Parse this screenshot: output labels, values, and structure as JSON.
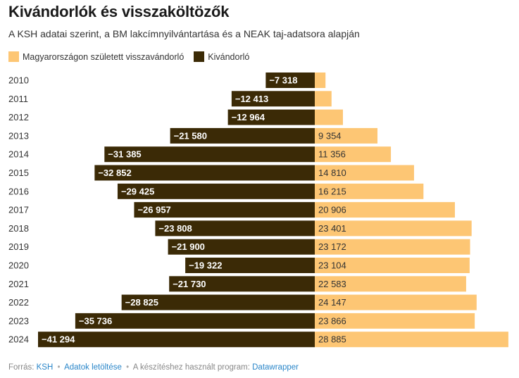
{
  "header": {
    "title": "Kivándorlók és visszaköltözők",
    "subtitle": "A KSH adatai szerint, a BM lakcímnyilvántartása és a NEAK taj-adatsora alapján"
  },
  "legend": {
    "returnee_label": "Magyarországon született visszavándorló",
    "emigrant_label": "Kivándorló"
  },
  "colors": {
    "returnee": "#fdc674",
    "emigrant": "#3b2a06",
    "label_on_dark": "#ffffff",
    "label_on_light": "#333333"
  },
  "chart_data": {
    "type": "bar",
    "orientation": "horizontal-diverging",
    "categories": [
      "2010",
      "2011",
      "2012",
      "2013",
      "2014",
      "2015",
      "2016",
      "2017",
      "2018",
      "2019",
      "2020",
      "2021",
      "2022",
      "2023",
      "2024"
    ],
    "series": [
      {
        "name": "Kivándorló",
        "values": [
          -7318,
          -12413,
          -12964,
          -21580,
          -31385,
          -32852,
          -29425,
          -26957,
          -23808,
          -21900,
          -19322,
          -21730,
          -28825,
          -35736,
          -41294
        ],
        "labels": [
          "−7 318",
          "−12 413",
          "−12 964",
          "−21 580",
          "−31 385",
          "−32 852",
          "−29 425",
          "−26 957",
          "−23 808",
          "−21 900",
          "−19 322",
          "−21 730",
          "−28 825",
          "−35 736",
          "−41 294"
        ]
      },
      {
        "name": "Magyarországon született visszavándorló",
        "values": [
          1600,
          2500,
          4200,
          9354,
          11356,
          14810,
          16215,
          20906,
          23401,
          23172,
          23104,
          22583,
          24147,
          23866,
          28885
        ],
        "labels": [
          "",
          "",
          "",
          "9 354",
          "11 356",
          "14 810",
          "16 215",
          "20 906",
          "23 401",
          "23 172",
          "23 104",
          "22 583",
          "24 147",
          "23 866",
          "28 885"
        ]
      }
    ],
    "xlim": [
      -41294,
      28885
    ]
  },
  "footer": {
    "source_prefix": "Forrás:",
    "source_name": "KSH",
    "download_label": "Adatok letöltése",
    "tool_prefix": "A készítéshez használt program:",
    "tool_name": "Datawrapper"
  }
}
